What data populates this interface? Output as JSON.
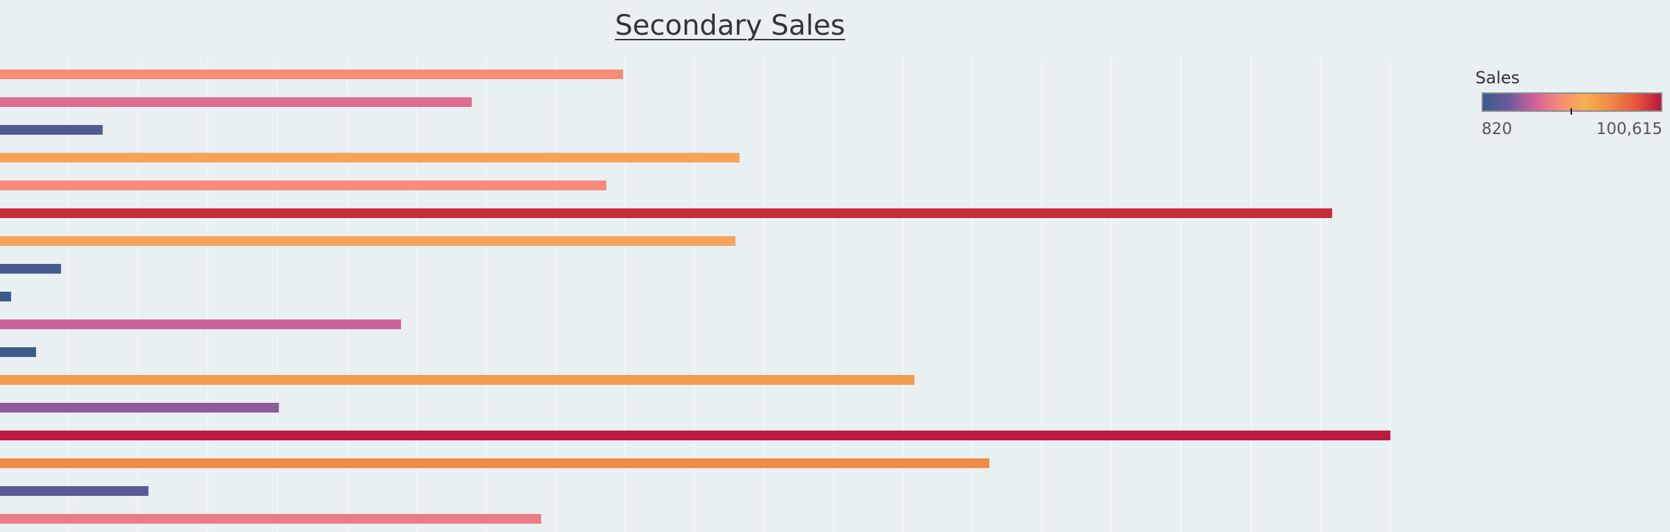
{
  "chart_data": {
    "type": "bar",
    "orientation": "horizontal",
    "title": "Secondary Sales",
    "color_by": "value",
    "values": [
      44900,
      34000,
      7400,
      53300,
      43700,
      96000,
      53000,
      4400,
      800,
      28900,
      2600,
      65900,
      20100,
      100200,
      71300,
      10700,
      39000
    ],
    "xlim": [
      0,
      120000
    ],
    "grid": "vertical gridlines",
    "legend": {
      "title": "Sales",
      "min_label": "820",
      "max_label": "100,615",
      "min": 820,
      "max": 100615,
      "marker_value": 50000,
      "placement": "top-right",
      "gradient_colors": [
        "#3a5a8c",
        "#6a5a9c",
        "#d0609a",
        "#f78a7a",
        "#f4b04e",
        "#ee8a48",
        "#e8583a",
        "#b8183e"
      ]
    }
  }
}
